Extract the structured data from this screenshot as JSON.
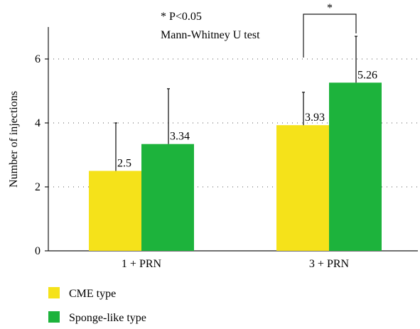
{
  "chart_data": {
    "type": "bar",
    "categories": [
      "1 + PRN",
      "3 + PRN"
    ],
    "series": [
      {
        "name": "CME type",
        "values": [
          2.5,
          3.93
        ],
        "error": [
          1.5,
          1.03
        ],
        "color": "#f5e21a"
      },
      {
        "name": "Sponge-like type",
        "values": [
          3.34,
          5.26
        ],
        "error": [
          1.73,
          1.45
        ],
        "color": "#1db33c"
      }
    ],
    "value_labels": [
      [
        "2.5",
        "3.93"
      ],
      [
        "3.34",
        "5.26"
      ]
    ],
    "ylabel": "Number of injections",
    "xlabel": "",
    "ylim": [
      0,
      7
    ],
    "yticks": [
      0,
      2,
      4,
      6
    ],
    "ytick_labels": [
      "0",
      "2",
      "4",
      "6"
    ],
    "grid": "dotted horizontal at 2, 4, 6",
    "legend_position": "bottom-left",
    "annotation": {
      "note_line1": "* P<0.05",
      "note_line2": "Mann-Whitney U test",
      "significance_marker": "*",
      "significance_group": "3 + PRN"
    }
  }
}
